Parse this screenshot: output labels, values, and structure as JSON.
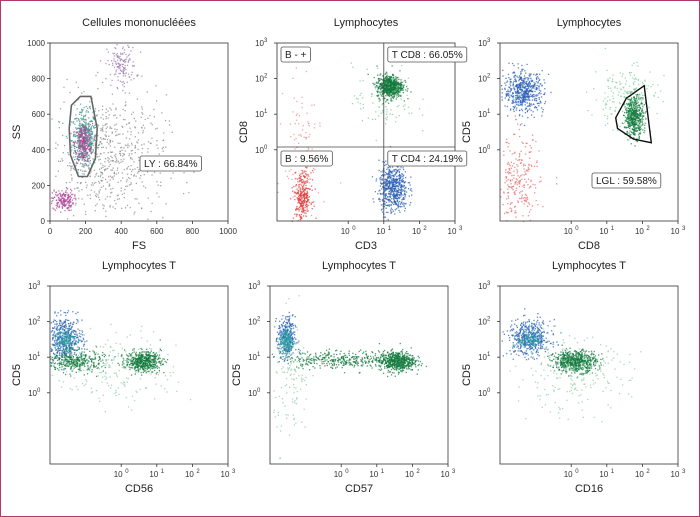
{
  "chart_data": [
    {
      "type": "scatter",
      "title": "Cellules mononucléées",
      "xlabel": "FS",
      "ylabel": "SS",
      "scale": "linear",
      "xlim": [
        0,
        1000
      ],
      "ylim": [
        0,
        1000
      ],
      "x_ticks": [
        "0",
        "200",
        "400",
        "600",
        "800",
        "1000"
      ],
      "y_ticks": [
        "0",
        "200",
        "400",
        "600",
        "800",
        "1000"
      ],
      "gates": [
        {
          "label": "LY : 66.84%",
          "shape": "polygon",
          "points": [
            [
              120,
              650
            ],
            [
              170,
              700
            ],
            [
              230,
              700
            ],
            [
              265,
              520
            ],
            [
              255,
              350
            ],
            [
              210,
              250
            ],
            [
              160,
              250
            ],
            [
              115,
              370
            ],
            [
              108,
              520
            ]
          ]
        }
      ],
      "populations": [
        {
          "name": "lymphocytes",
          "color": "#2f9a86",
          "cx": 190,
          "cy": 460,
          "sx": 35,
          "sy": 80,
          "n": 420
        },
        {
          "name": "lymphocytes-core",
          "color": "#b0459a",
          "cx": 185,
          "cy": 440,
          "sx": 25,
          "sy": 55,
          "n": 260
        },
        {
          "name": "debris",
          "color": "#b0459a",
          "cx": 70,
          "cy": 120,
          "sx": 30,
          "sy": 30,
          "n": 180
        },
        {
          "name": "monocytes",
          "color": "#9a7ab0",
          "cx": 400,
          "cy": 880,
          "sx": 40,
          "sy": 60,
          "n": 140
        },
        {
          "name": "scatter",
          "color": "#8a8a8a",
          "cx": 330,
          "cy": 350,
          "sx": 160,
          "sy": 180,
          "n": 650
        }
      ]
    },
    {
      "type": "scatter",
      "title": "Lymphocytes",
      "xlabel": "CD3",
      "ylabel": "CD8",
      "scale": "log",
      "xlim": [
        0.01,
        1000
      ],
      "ylim": [
        0.01,
        1000
      ],
      "quadrant_split": [
        10,
        1.2
      ],
      "gates": [
        {
          "label": "B - +",
          "pos": "top-left"
        },
        {
          "label": "T CD8 : 66.05%",
          "pos": "top-right"
        },
        {
          "label": "B : 9.56%",
          "pos": "bottom-left"
        },
        {
          "label": "T CD4 : 24.19%",
          "pos": "bottom-right"
        }
      ],
      "populations": [
        {
          "name": "T CD8",
          "color": "#117a3c",
          "cx": 1.15,
          "cy": 1.8,
          "sx": 0.18,
          "sy": 0.16,
          "n": 650
        },
        {
          "name": "T CD8 sparse",
          "color": "#7fc79a",
          "cx": 1.0,
          "cy": 1.4,
          "sx": 0.45,
          "sy": 0.5,
          "n": 90
        },
        {
          "name": "T CD4",
          "color": "#2a5fb5",
          "cx": 1.25,
          "cy": -1.05,
          "sx": 0.2,
          "sy": 0.35,
          "n": 600
        },
        {
          "name": "B",
          "color": "#e03a3a",
          "cx": -1.3,
          "cy": -1.3,
          "sx": 0.12,
          "sy": 0.35,
          "n": 300
        },
        {
          "name": "B sparse",
          "color": "#f08a8a",
          "cx": -1.3,
          "cy": 0.0,
          "sx": 0.25,
          "sy": 1.0,
          "n": 120
        }
      ]
    },
    {
      "type": "scatter",
      "title": "Lymphocytes",
      "xlabel": "CD8",
      "ylabel": "CD5",
      "scale": "log",
      "xlim": [
        0.01,
        1000
      ],
      "ylim": [
        0.01,
        1000
      ],
      "gates": [
        {
          "label": "LGL : 59.58%",
          "shape": "polygon",
          "points": [
            [
              1.25,
              0.9
            ],
            [
              1.55,
              1.45
            ],
            [
              2.05,
              1.8
            ],
            [
              2.25,
              0.2
            ],
            [
              1.75,
              0.3
            ],
            [
              1.3,
              0.6
            ]
          ]
        }
      ],
      "populations": [
        {
          "name": "LGL",
          "color": "#117a3c",
          "cx": 1.75,
          "cy": 0.95,
          "sx": 0.13,
          "sy": 0.28,
          "n": 500
        },
        {
          "name": "LGL halo",
          "color": "#7fcf9a",
          "cx": 1.5,
          "cy": 1.5,
          "sx": 0.45,
          "sy": 0.45,
          "n": 200
        },
        {
          "name": "CD5+ CD8-",
          "color": "#2a5fb5",
          "cx": -1.35,
          "cy": 1.65,
          "sx": 0.28,
          "sy": 0.28,
          "n": 550
        },
        {
          "name": "CD5- CD8-",
          "color": "#e86a6a",
          "cx": -1.5,
          "cy": -1.0,
          "sx": 0.3,
          "sy": 0.7,
          "n": 260
        }
      ]
    },
    {
      "type": "scatter",
      "title": "Lymphocytes T",
      "xlabel": "CD56",
      "ylabel": "CD5",
      "scale": "log",
      "xlim": [
        0.01,
        1000
      ],
      "ylim": [
        0.01,
        1000
      ],
      "populations": [
        {
          "name": "CD5 bright",
          "color": "#2a5fb5",
          "cx": -1.6,
          "cy": 1.55,
          "sx": 0.25,
          "sy": 0.3,
          "n": 450
        },
        {
          "name": "CD5 bright core",
          "color": "#2aa0a0",
          "cx": -1.6,
          "cy": 1.5,
          "sx": 0.15,
          "sy": 0.18,
          "n": 150
        },
        {
          "name": "CD5 dim CD56-",
          "color": "#117a3c",
          "cx": -1.3,
          "cy": 0.9,
          "sx": 0.4,
          "sy": 0.15,
          "n": 350
        },
        {
          "name": "CD5 dim CD56+",
          "color": "#117a3c",
          "cx": 0.6,
          "cy": 0.9,
          "sx": 0.25,
          "sy": 0.14,
          "n": 500
        },
        {
          "name": "sparse",
          "color": "#8fc9a8",
          "cx": -0.2,
          "cy": 0.7,
          "sx": 0.9,
          "sy": 0.5,
          "n": 200
        }
      ]
    },
    {
      "type": "scatter",
      "title": "Lymphocytes T",
      "xlabel": "CD57",
      "ylabel": "CD5",
      "scale": "log",
      "xlim": [
        0.01,
        1000
      ],
      "ylim": [
        0.01,
        1000
      ],
      "populations": [
        {
          "name": "CD5 bright",
          "color": "#2a5fb5",
          "cx": -1.55,
          "cy": 1.55,
          "sx": 0.12,
          "sy": 0.3,
          "n": 300
        },
        {
          "name": "CD5 bright core",
          "color": "#2aa0a0",
          "cx": -1.55,
          "cy": 1.45,
          "sx": 0.1,
          "sy": 0.2,
          "n": 180
        },
        {
          "name": "CD5 dim CD57+",
          "color": "#117a3c",
          "cx": 1.55,
          "cy": 0.9,
          "sx": 0.25,
          "sy": 0.14,
          "n": 550
        },
        {
          "name": "smear",
          "color": "#117a3c",
          "cx": 0.0,
          "cy": 0.95,
          "sx": 0.8,
          "sy": 0.12,
          "n": 350
        },
        {
          "name": "sparse",
          "color": "#8fc9a8",
          "cx": -1.4,
          "cy": 0.3,
          "sx": 0.25,
          "sy": 0.9,
          "n": 120
        }
      ]
    },
    {
      "type": "scatter",
      "title": "Lymphocytes T",
      "xlabel": "CD16",
      "ylabel": "CD5",
      "scale": "log",
      "xlim": [
        0.01,
        1000
      ],
      "ylim": [
        0.01,
        1000
      ],
      "populations": [
        {
          "name": "CD5 bright",
          "color": "#2a5fb5",
          "cx": -1.2,
          "cy": 1.55,
          "sx": 0.3,
          "sy": 0.25,
          "n": 450
        },
        {
          "name": "CD5 bright core",
          "color": "#2aa0a0",
          "cx": -1.15,
          "cy": 1.5,
          "sx": 0.18,
          "sy": 0.15,
          "n": 140
        },
        {
          "name": "CD5 dim CD16+",
          "color": "#117a3c",
          "cx": 0.1,
          "cy": 0.9,
          "sx": 0.3,
          "sy": 0.15,
          "n": 600
        },
        {
          "name": "sparse",
          "color": "#8fc9a8",
          "cx": 0.0,
          "cy": 0.5,
          "sx": 0.8,
          "sy": 0.5,
          "n": 220
        }
      ]
    }
  ]
}
